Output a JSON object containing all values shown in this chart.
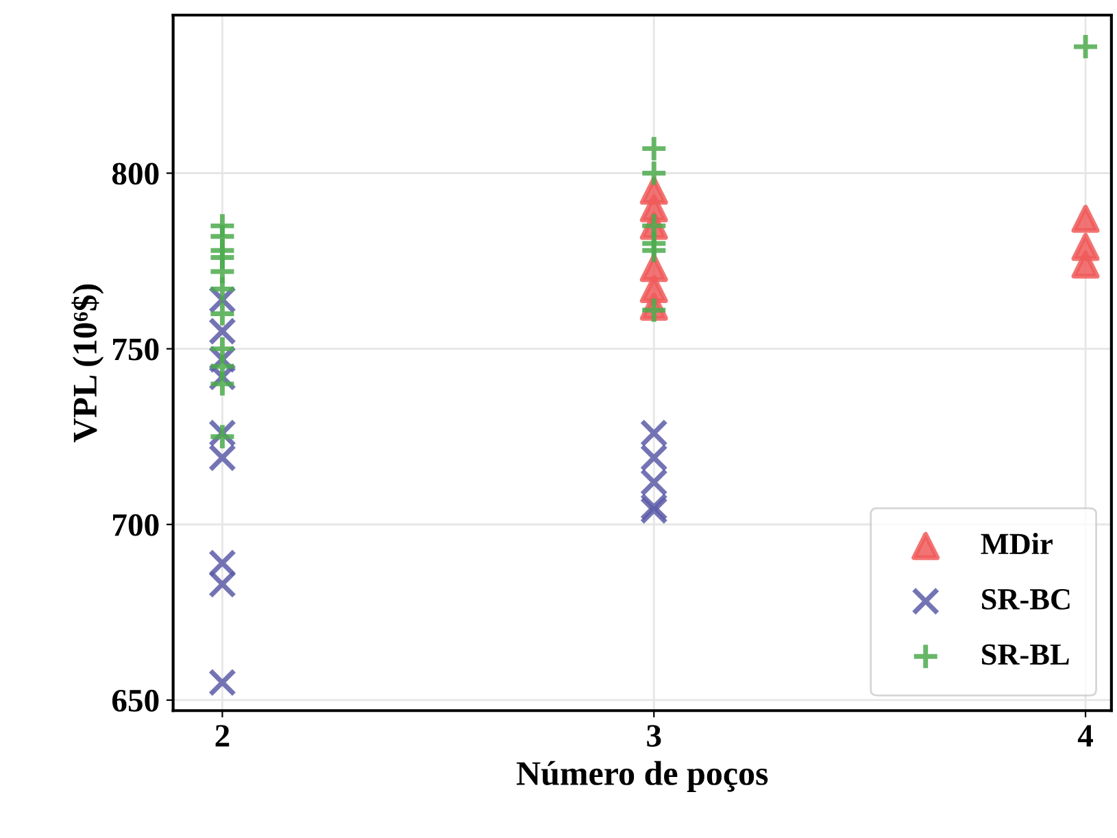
{
  "chart_data": {
    "type": "scatter",
    "xlabel": "Número de poços",
    "ylabel": "VPL (10⁶$)",
    "xlim": [
      1.886,
      4.06
    ],
    "xticks": [
      2,
      3,
      4
    ],
    "ylim": [
      647,
      845
    ],
    "yticks": [
      650,
      700,
      750,
      800
    ],
    "grid": true,
    "legend": "bottom right",
    "series": [
      {
        "name": "MDir",
        "color": "#f05a5a",
        "marker": "triangle",
        "x": [
          3,
          3,
          3,
          3,
          3,
          3,
          4,
          4,
          4
        ],
        "values": [
          795,
          790,
          785,
          773,
          767,
          762,
          787,
          779,
          774
        ]
      },
      {
        "name": "SR-BC",
        "color": "#5c5ca8",
        "marker": "cross",
        "x": [
          2,
          2,
          2,
          2,
          2,
          2,
          2,
          2,
          2,
          3,
          3,
          3,
          3,
          3
        ],
        "values": [
          655,
          683,
          689,
          719,
          726,
          742,
          747,
          755,
          764,
          726,
          719,
          712,
          705,
          704
        ]
      },
      {
        "name": "SR-BL",
        "color": "#4caa4c",
        "marker": "plus",
        "x": [
          2,
          2,
          2,
          2,
          2,
          2,
          2,
          2,
          2,
          2,
          2,
          3,
          3,
          3,
          3,
          3,
          3,
          4
        ],
        "values": [
          785,
          782,
          778,
          776,
          772,
          767,
          760,
          750,
          745,
          740,
          725,
          807,
          800,
          785,
          780,
          778,
          761,
          836
        ]
      }
    ]
  }
}
